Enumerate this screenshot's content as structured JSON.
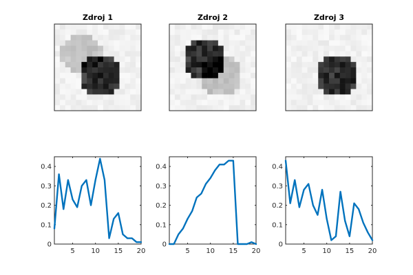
{
  "chart_data": [
    {
      "type": "heatmap",
      "title": "Zdroj 1",
      "grid_rows": 16,
      "grid_cols": 16,
      "colormap": "gray-reversed",
      "blobs": [
        {
          "cx": 8.5,
          "cy": 9.5,
          "r": 3.8,
          "intensity": 0.78
        },
        {
          "cx": 5.0,
          "cy": 5.5,
          "r": 3.8,
          "intensity": 0.18
        }
      ]
    },
    {
      "type": "heatmap",
      "title": "Zdroj 2",
      "grid_rows": 16,
      "grid_cols": 16,
      "colormap": "gray-reversed",
      "blobs": [
        {
          "cx": 6.5,
          "cy": 6.5,
          "r": 4.0,
          "intensity": 0.78
        },
        {
          "cx": 9.5,
          "cy": 9.5,
          "r": 3.8,
          "intensity": 0.2
        }
      ]
    },
    {
      "type": "heatmap",
      "title": "Zdroj 3",
      "grid_rows": 16,
      "grid_cols": 16,
      "colormap": "gray-reversed",
      "blobs": [
        {
          "cx": 9.5,
          "cy": 9.5,
          "r": 4.0,
          "intensity": 0.8
        }
      ]
    },
    {
      "type": "line",
      "title": "",
      "series_color": "#0072BD",
      "xlim": [
        1,
        20
      ],
      "ylim": [
        0,
        0.45
      ],
      "xticks": [
        5,
        10,
        15,
        20
      ],
      "yticks": [
        0,
        0.1,
        0.2,
        0.3,
        0.4
      ],
      "x": [
        1,
        2,
        3,
        4,
        5,
        6,
        7,
        8,
        9,
        10,
        11,
        12,
        13,
        14,
        15,
        16,
        17,
        18,
        19,
        20
      ],
      "y": [
        0.08,
        0.36,
        0.18,
        0.33,
        0.23,
        0.19,
        0.3,
        0.33,
        0.2,
        0.33,
        0.44,
        0.33,
        0.03,
        0.13,
        0.16,
        0.05,
        0.03,
        0.03,
        0.01,
        0.01
      ]
    },
    {
      "type": "line",
      "title": "",
      "series_color": "#0072BD",
      "xlim": [
        1,
        20
      ],
      "ylim": [
        0,
        0.45
      ],
      "xticks": [
        5,
        10,
        15,
        20
      ],
      "yticks": [
        0,
        0.1,
        0.2,
        0.3,
        0.4
      ],
      "x": [
        1,
        2,
        3,
        4,
        5,
        6,
        7,
        8,
        9,
        10,
        11,
        12,
        13,
        14,
        15,
        16,
        17,
        18,
        19,
        20
      ],
      "y": [
        0.0,
        0.0,
        0.05,
        0.08,
        0.13,
        0.17,
        0.24,
        0.26,
        0.31,
        0.34,
        0.38,
        0.41,
        0.41,
        0.43,
        0.43,
        0.0,
        0.0,
        0.0,
        0.01,
        0.0
      ]
    },
    {
      "type": "line",
      "title": "",
      "series_color": "#0072BD",
      "xlim": [
        1,
        20
      ],
      "ylim": [
        0,
        0.45
      ],
      "xticks": [
        5,
        10,
        15,
        20
      ],
      "yticks": [
        0,
        0.1,
        0.2,
        0.3,
        0.4
      ],
      "x": [
        1,
        2,
        3,
        4,
        5,
        6,
        7,
        8,
        9,
        10,
        11,
        12,
        13,
        14,
        15,
        16,
        17,
        18,
        19,
        20
      ],
      "y": [
        0.43,
        0.21,
        0.33,
        0.19,
        0.28,
        0.31,
        0.2,
        0.15,
        0.28,
        0.13,
        0.02,
        0.04,
        0.27,
        0.12,
        0.04,
        0.21,
        0.18,
        0.11,
        0.06,
        0.02
      ]
    }
  ]
}
